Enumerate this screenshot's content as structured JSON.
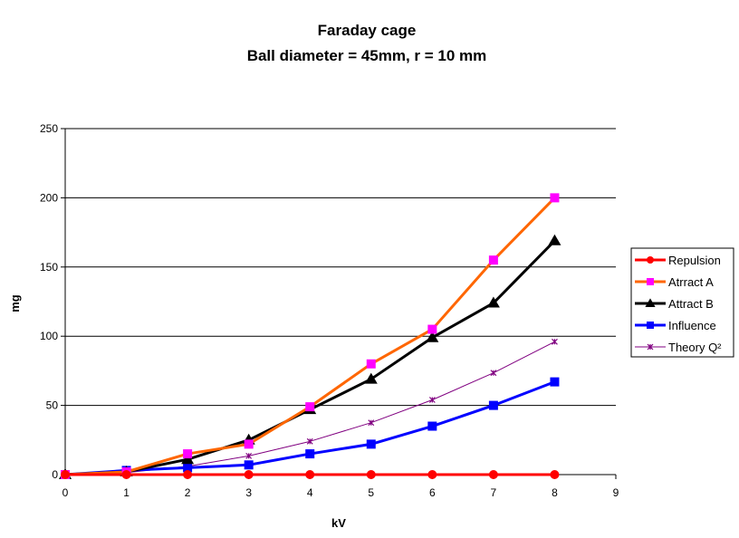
{
  "chart_data": {
    "type": "line",
    "title": "Faraday cage",
    "subtitle": "Ball diameter = 45mm, r = 10 mm",
    "xlabel": "kV",
    "ylabel": "mg",
    "xlim": [
      0,
      9
    ],
    "ylim": [
      0,
      250
    ],
    "xticks": [
      "0",
      "1",
      "2",
      "3",
      "4",
      "5",
      "6",
      "7",
      "8",
      "9"
    ],
    "yticks": [
      "0",
      "50",
      "100",
      "150",
      "200",
      "250"
    ],
    "grid": "horizontal",
    "legend_position": "right",
    "x": [
      0,
      1,
      2,
      3,
      4,
      5,
      6,
      7,
      8
    ],
    "series": [
      {
        "name": "Repulsion",
        "color": "#ff0000",
        "marker": "circle",
        "marker_color": "#ff0000",
        "values": [
          0,
          0,
          0,
          0,
          0,
          0,
          0,
          0,
          0
        ]
      },
      {
        "name": "Atrract A",
        "color": "#ff6600",
        "marker": "square",
        "marker_color": "#ff00ff",
        "values": [
          0,
          2,
          15,
          22,
          49,
          80,
          105,
          155,
          200
        ]
      },
      {
        "name": "Attract B",
        "color": "#000000",
        "marker": "triangle",
        "marker_color": "#000000",
        "values": [
          0,
          2,
          11,
          25,
          47,
          69,
          99,
          124,
          169
        ]
      },
      {
        "name": "Influence",
        "color": "#0000ff",
        "marker": "square",
        "marker_color": "#0000ff",
        "values": [
          0,
          3,
          5,
          7,
          15,
          22,
          35,
          50,
          67
        ]
      },
      {
        "name": "Theory Q²",
        "color": "#800080",
        "marker": "star",
        "marker_color": "#800080",
        "values": [
          0,
          1.5,
          6,
          13.5,
          24,
          37.5,
          54,
          73.5,
          96
        ]
      }
    ]
  }
}
